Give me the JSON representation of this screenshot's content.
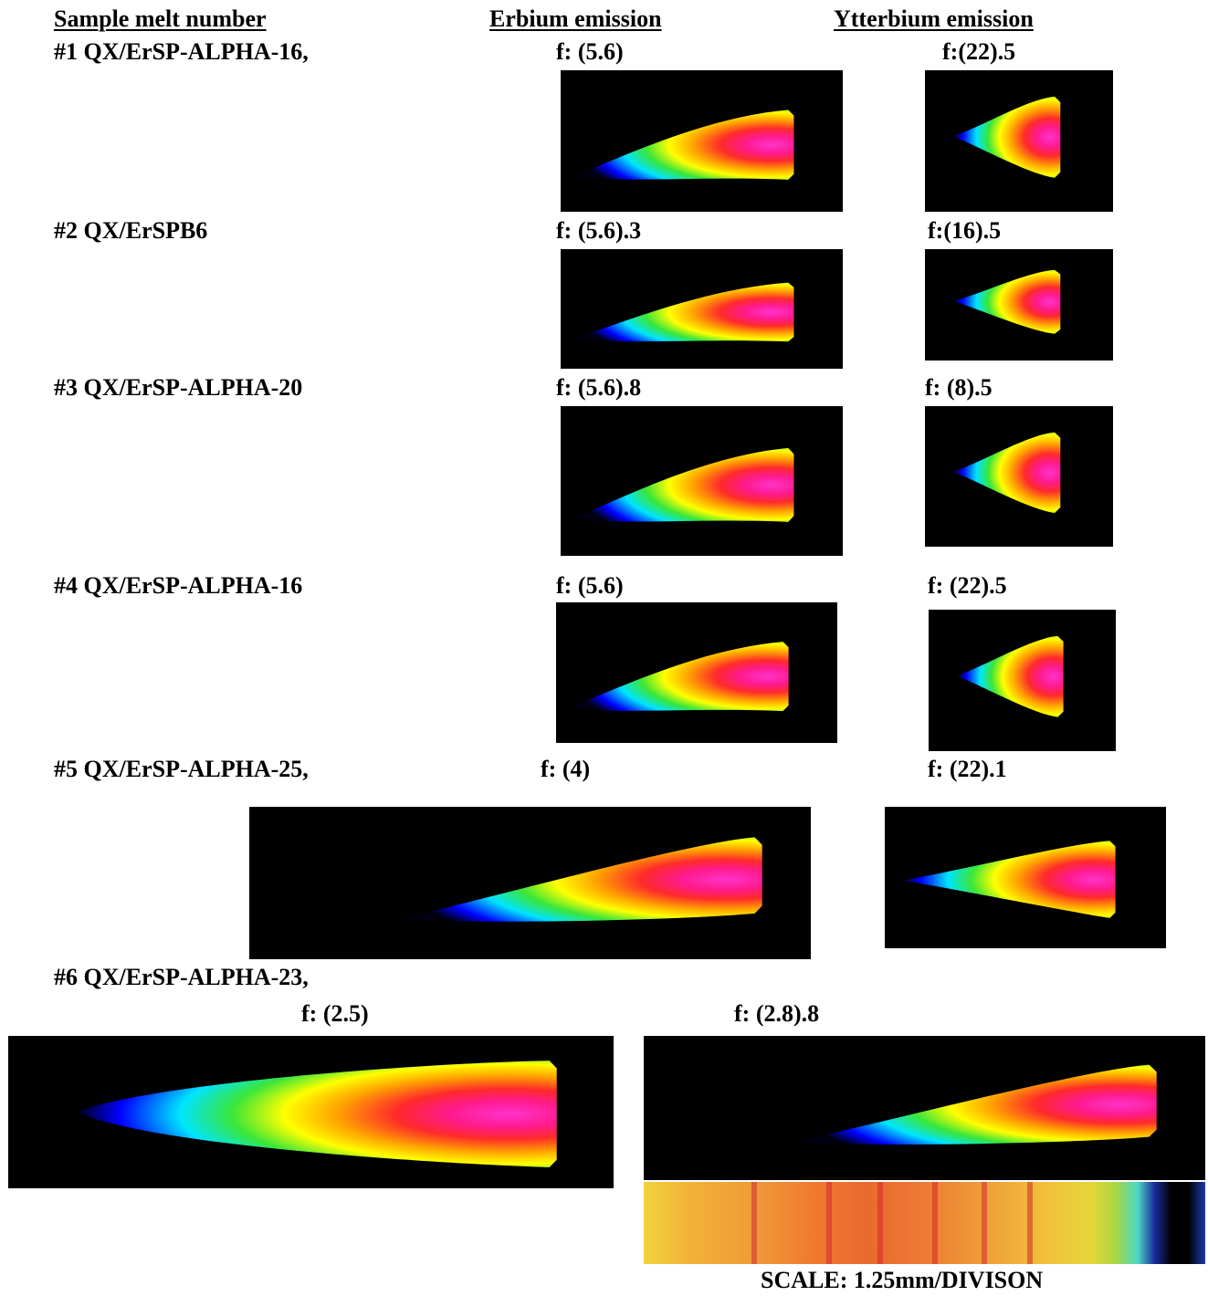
{
  "headers": {
    "sample": "Sample melt  number",
    "erbium": "Erbium emission",
    "ytterbium": "Ytterbium emission"
  },
  "samples": [
    {
      "label": "#1 QX/ErSP-ALPHA-16,",
      "er_f": "f: (5.6)",
      "yb_f": "f:(22).5"
    },
    {
      "label": "#2 QX/ErSPB6",
      "er_f": "f: (5.6).3",
      "yb_f": "f:(16).5"
    },
    {
      "label": "#3 QX/ErSP-ALPHA-20",
      "er_f": "f: (5.6).8",
      "yb_f": "f: (8).5"
    },
    {
      "label": "#4 QX/ErSP-ALPHA-16",
      "er_f": "f: (5.6)",
      "yb_f": "f: (22).5"
    },
    {
      "label": "#5 QX/ErSP-ALPHA-25,",
      "er_f": "f: (4)",
      "yb_f": "f: (22).1"
    },
    {
      "label": "#6 QX/ErSP-ALPHA-23,",
      "er_f": "f: (2.5)",
      "yb_f": "f: (2.8).8"
    }
  ],
  "scale": "SCALE: 1.25mm/DIVISON",
  "colors": {
    "background": "#000000",
    "core": "#ff1493",
    "hot": "#ff2a2a",
    "warm": "#ffa500",
    "mid": "#ffff00",
    "cool": "#39e639",
    "cold": "#00e5ff",
    "edge": "#0000ff"
  }
}
